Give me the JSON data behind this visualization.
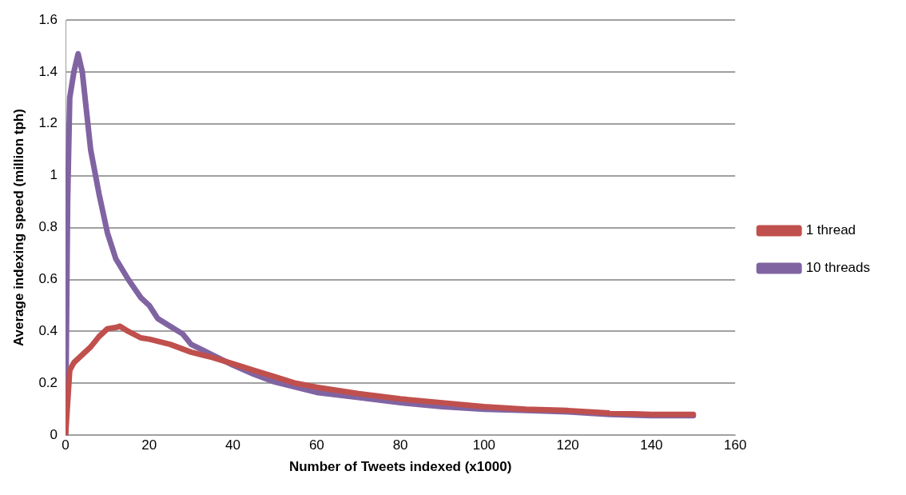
{
  "chart_data": {
    "type": "line",
    "xlabel": "Number of Tweets indexed (x1000)",
    "ylabel": "Average indexing speed (million tph)",
    "xlim": [
      0,
      160
    ],
    "xticks": [
      0,
      20,
      40,
      60,
      80,
      100,
      120,
      140,
      160
    ],
    "ylim": [
      0,
      1.6
    ],
    "yticks": [
      0,
      0.2,
      0.4,
      0.6,
      0.8,
      1,
      1.2,
      1.4,
      1.6
    ],
    "grid": "y",
    "legend": "right",
    "marker": "none",
    "line_style": "solid",
    "series": [
      {
        "name": "1 thread",
        "color": "#c0504d",
        "x": [
          0,
          1,
          2,
          4,
          6,
          8,
          10,
          12,
          13,
          15,
          18,
          20,
          25,
          30,
          35,
          40,
          45,
          50,
          55,
          60,
          70,
          80,
          90,
          100,
          110,
          120,
          130,
          140,
          150
        ],
        "values": [
          0,
          0.25,
          0.28,
          0.31,
          0.34,
          0.38,
          0.41,
          0.415,
          0.42,
          0.4,
          0.375,
          0.37,
          0.35,
          0.32,
          0.3,
          0.275,
          0.25,
          0.225,
          0.2,
          0.185,
          0.16,
          0.14,
          0.125,
          0.11,
          0.1,
          0.095,
          0.085,
          0.08,
          0.08
        ]
      },
      {
        "name": "10 threads",
        "color": "#8064a2",
        "x": [
          0,
          0.5,
          1,
          2,
          3,
          4,
          5,
          6,
          8,
          10,
          12,
          15,
          18,
          20,
          22,
          25,
          28,
          30,
          35,
          40,
          45,
          50,
          55,
          60,
          70,
          80,
          90,
          100,
          110,
          120,
          130,
          140,
          150
        ],
        "values": [
          0,
          0.9,
          1.3,
          1.4,
          1.47,
          1.4,
          1.25,
          1.1,
          0.93,
          0.78,
          0.68,
          0.6,
          0.53,
          0.5,
          0.45,
          0.42,
          0.39,
          0.35,
          0.31,
          0.27,
          0.235,
          0.205,
          0.185,
          0.165,
          0.145,
          0.125,
          0.11,
          0.1,
          0.095,
          0.09,
          0.08,
          0.075,
          0.075
        ]
      }
    ]
  }
}
